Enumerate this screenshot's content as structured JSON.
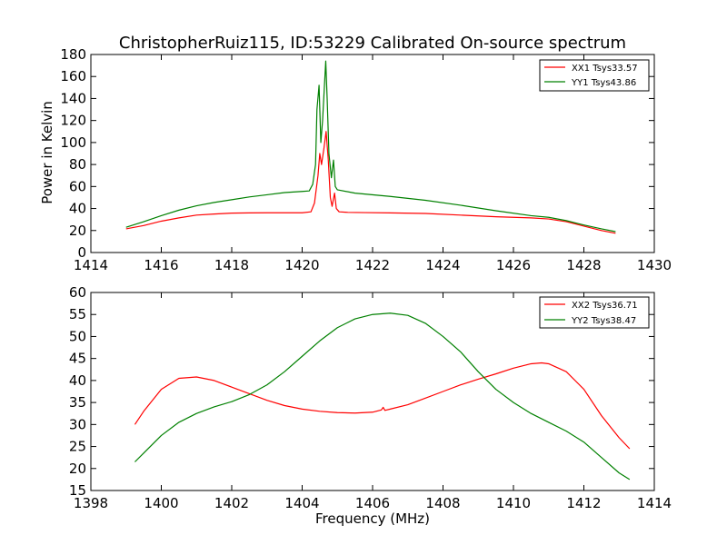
{
  "chart_data": [
    {
      "type": "line",
      "title": "ChristopherRuiz115, ID:53229 Calibrated On-source spectrum",
      "xlabel": "",
      "ylabel": "Power in Kelvin",
      "xlim": [
        1414,
        1430
      ],
      "ylim": [
        0,
        180
      ],
      "xticks": [
        1414,
        1416,
        1418,
        1420,
        1422,
        1424,
        1426,
        1428,
        1430
      ],
      "yticks": [
        0,
        20,
        40,
        60,
        80,
        100,
        120,
        140,
        160,
        180
      ],
      "grid": false,
      "legend_position": "top-right",
      "series": [
        {
          "name": "XX1 Tsys33.57",
          "color": "#ff0000",
          "points": [
            [
              1415.0,
              21.5
            ],
            [
              1415.5,
              24.5
            ],
            [
              1416.0,
              28.5
            ],
            [
              1416.5,
              31.5
            ],
            [
              1417.0,
              34.0
            ],
            [
              1417.5,
              35.0
            ],
            [
              1418.0,
              35.8
            ],
            [
              1418.5,
              36.0
            ],
            [
              1419.0,
              36.1
            ],
            [
              1419.5,
              36.1
            ],
            [
              1420.0,
              36.1
            ],
            [
              1420.25,
              37.0
            ],
            [
              1420.35,
              45.0
            ],
            [
              1420.45,
              70.0
            ],
            [
              1420.5,
              90.0
            ],
            [
              1420.55,
              80.0
            ],
            [
              1420.62,
              95.0
            ],
            [
              1420.68,
              110.0
            ],
            [
              1420.74,
              85.0
            ],
            [
              1420.8,
              50.0
            ],
            [
              1420.85,
              42.0
            ],
            [
              1420.92,
              54.0
            ],
            [
              1420.97,
              40.0
            ],
            [
              1421.05,
              37.0
            ],
            [
              1421.3,
              36.5
            ],
            [
              1421.8,
              36.3
            ],
            [
              1422.5,
              36.0
            ],
            [
              1423.5,
              35.5
            ],
            [
              1424.5,
              34.0
            ],
            [
              1425.5,
              32.5
            ],
            [
              1426.5,
              31.5
            ],
            [
              1427.0,
              30.5
            ],
            [
              1427.5,
              28.0
            ],
            [
              1428.0,
              24.0
            ],
            [
              1428.5,
              20.0
            ],
            [
              1428.9,
              17.5
            ]
          ]
        },
        {
          "name": "YY1 Tsys43.86",
          "color": "#008000",
          "points": [
            [
              1415.0,
              23.0
            ],
            [
              1415.5,
              28.0
            ],
            [
              1416.0,
              33.5
            ],
            [
              1416.5,
              38.5
            ],
            [
              1417.0,
              42.5
            ],
            [
              1417.5,
              45.5
            ],
            [
              1418.0,
              48.0
            ],
            [
              1418.5,
              50.5
            ],
            [
              1419.0,
              52.5
            ],
            [
              1419.5,
              54.5
            ],
            [
              1420.0,
              55.5
            ],
            [
              1420.2,
              56.0
            ],
            [
              1420.3,
              62.0
            ],
            [
              1420.38,
              80.0
            ],
            [
              1420.42,
              130.0
            ],
            [
              1420.48,
              152.0
            ],
            [
              1420.53,
              100.0
            ],
            [
              1420.58,
              120.0
            ],
            [
              1420.63,
              150.0
            ],
            [
              1420.67,
              174.0
            ],
            [
              1420.71,
              140.0
            ],
            [
              1420.76,
              90.0
            ],
            [
              1420.83,
              68.0
            ],
            [
              1420.89,
              84.0
            ],
            [
              1420.94,
              60.0
            ],
            [
              1421.0,
              57.0
            ],
            [
              1421.5,
              54.0
            ],
            [
              1422.5,
              51.0
            ],
            [
              1423.5,
              47.5
            ],
            [
              1424.5,
              43.0
            ],
            [
              1425.5,
              38.0
            ],
            [
              1426.5,
              33.5
            ],
            [
              1427.0,
              32.0
            ],
            [
              1427.5,
              29.0
            ],
            [
              1428.0,
              25.0
            ],
            [
              1428.5,
              21.5
            ],
            [
              1428.9,
              19.0
            ]
          ]
        }
      ]
    },
    {
      "type": "line",
      "title": "",
      "xlabel": "Frequency (MHz)",
      "ylabel": "",
      "xlim": [
        1398,
        1414
      ],
      "ylim": [
        15,
        60
      ],
      "xticks": [
        1398,
        1400,
        1402,
        1404,
        1406,
        1408,
        1410,
        1412,
        1414
      ],
      "yticks": [
        15,
        20,
        25,
        30,
        35,
        40,
        45,
        50,
        55,
        60
      ],
      "grid": false,
      "legend_position": "top-right",
      "series": [
        {
          "name": "XX2 Tsys36.71",
          "color": "#ff0000",
          "points": [
            [
              1399.25,
              30.0
            ],
            [
              1399.5,
              33.0
            ],
            [
              1400.0,
              38.0
            ],
            [
              1400.5,
              40.5
            ],
            [
              1401.0,
              40.8
            ],
            [
              1401.5,
              40.0
            ],
            [
              1402.0,
              38.5
            ],
            [
              1402.5,
              37.0
            ],
            [
              1403.0,
              35.5
            ],
            [
              1403.5,
              34.3
            ],
            [
              1404.0,
              33.5
            ],
            [
              1404.5,
              33.0
            ],
            [
              1405.0,
              32.7
            ],
            [
              1405.5,
              32.6
            ],
            [
              1406.0,
              32.8
            ],
            [
              1406.25,
              33.3
            ],
            [
              1406.3,
              33.9
            ],
            [
              1406.35,
              33.2
            ],
            [
              1406.5,
              33.5
            ],
            [
              1407.0,
              34.5
            ],
            [
              1407.5,
              36.0
            ],
            [
              1408.0,
              37.5
            ],
            [
              1408.5,
              39.0
            ],
            [
              1409.0,
              40.3
            ],
            [
              1409.5,
              41.5
            ],
            [
              1410.0,
              42.8
            ],
            [
              1410.5,
              43.8
            ],
            [
              1410.8,
              44.0
            ],
            [
              1411.0,
              43.8
            ],
            [
              1411.5,
              42.0
            ],
            [
              1412.0,
              38.0
            ],
            [
              1412.5,
              32.0
            ],
            [
              1413.0,
              27.0
            ],
            [
              1413.3,
              24.5
            ]
          ]
        },
        {
          "name": "YY2 Tsys38.47",
          "color": "#008000",
          "points": [
            [
              1399.25,
              21.5
            ],
            [
              1399.5,
              23.5
            ],
            [
              1400.0,
              27.5
            ],
            [
              1400.5,
              30.5
            ],
            [
              1401.0,
              32.5
            ],
            [
              1401.5,
              34.0
            ],
            [
              1402.0,
              35.2
            ],
            [
              1402.5,
              36.8
            ],
            [
              1403.0,
              39.0
            ],
            [
              1403.5,
              42.0
            ],
            [
              1404.0,
              45.5
            ],
            [
              1404.5,
              49.0
            ],
            [
              1405.0,
              52.0
            ],
            [
              1405.5,
              54.0
            ],
            [
              1406.0,
              55.0
            ],
            [
              1406.5,
              55.3
            ],
            [
              1407.0,
              54.8
            ],
            [
              1407.5,
              53.0
            ],
            [
              1408.0,
              50.0
            ],
            [
              1408.5,
              46.5
            ],
            [
              1409.0,
              42.0
            ],
            [
              1409.5,
              38.0
            ],
            [
              1410.0,
              35.0
            ],
            [
              1410.5,
              32.5
            ],
            [
              1411.0,
              30.5
            ],
            [
              1411.5,
              28.5
            ],
            [
              1412.0,
              26.0
            ],
            [
              1412.5,
              22.5
            ],
            [
              1413.0,
              19.0
            ],
            [
              1413.3,
              17.5
            ]
          ]
        }
      ]
    }
  ]
}
